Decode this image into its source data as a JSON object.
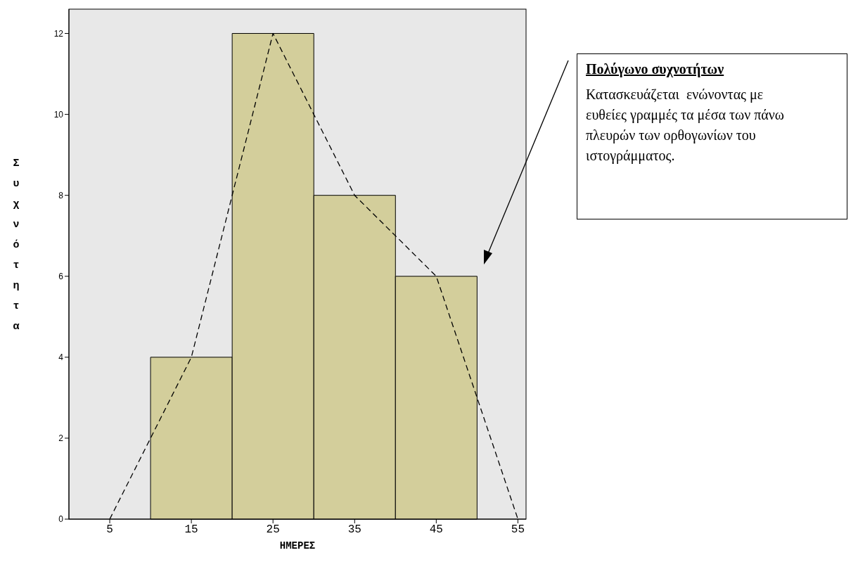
{
  "chart_data": {
    "type": "histogram",
    "xlabel": "ΗΜΕΡΕΣ",
    "ylabel": "Συχνότητα",
    "series": [
      {
        "color": "#d3ce9b",
        "bins": [
          10,
          20,
          30,
          40,
          50
        ],
        "values": [
          4,
          12,
          8,
          6
        ]
      },
      {
        "type": "line",
        "color": "#000000",
        "x": [
          5,
          15,
          25,
          35,
          45,
          55
        ],
        "values": [
          0,
          4,
          12,
          8,
          6,
          0
        ],
        "line_style": "dashed",
        "marker": "none"
      }
    ],
    "xlim": [
      0,
      56
    ],
    "xticks": [
      5,
      15,
      25,
      35,
      45,
      55
    ],
    "ylim": [
      0,
      12.6
    ],
    "yticks": [
      0,
      2,
      4,
      6,
      8,
      10,
      12
    ],
    "grid": false,
    "annotations": [
      "Πολύγωνο συχνοτήτων",
      "Κατασκευάζεται  ενώνοντας με ευθείες γραμμές τα μέσα των πάνω πλευρών των ορθογωνίων του ιστογράμματος."
    ]
  }
}
